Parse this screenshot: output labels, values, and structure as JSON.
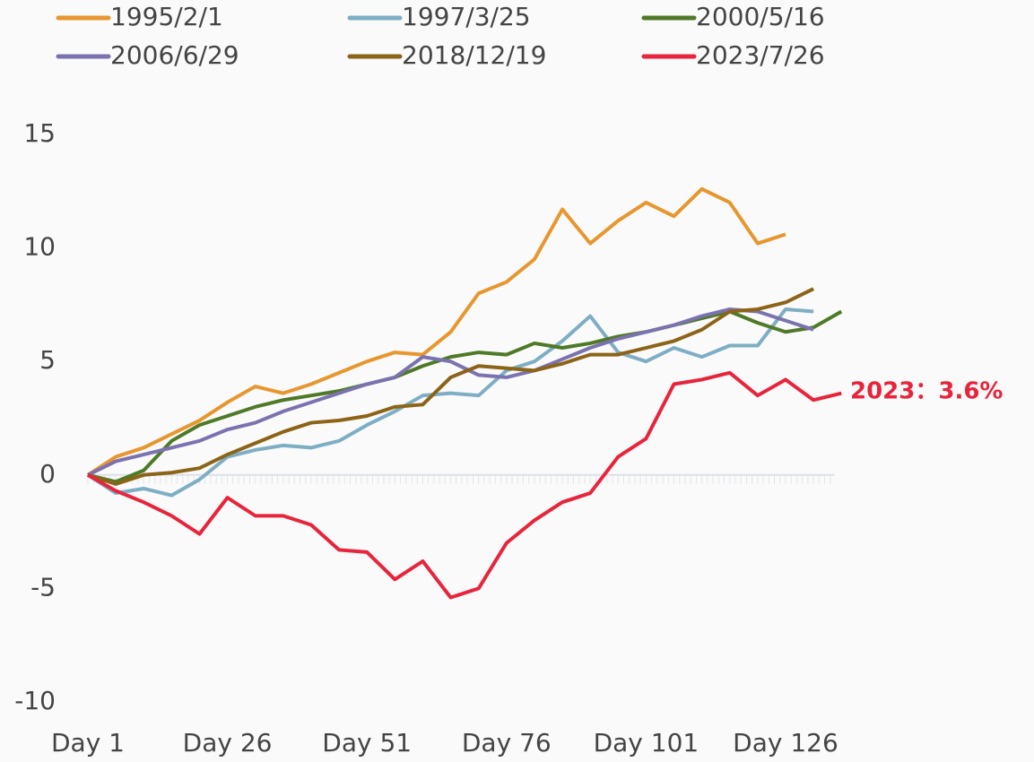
{
  "chart_data": {
    "type": "line",
    "annotation": "2023：3.6%",
    "categories": [
      "Day 1",
      null,
      null,
      null,
      null,
      "Day 26",
      null,
      null,
      null,
      null,
      "Day 51",
      null,
      null,
      null,
      null,
      "Day 76",
      null,
      null,
      null,
      null,
      "Day 101",
      null,
      null,
      null,
      null,
      "Day 126",
      null,
      null
    ],
    "series": [
      {
        "name": "1995/2/1",
        "color": "#e8962e",
        "values": [
          0,
          0.8,
          1.2,
          1.8,
          2.4,
          3.2,
          3.9,
          3.6,
          4.0,
          4.5,
          5.0,
          5.4,
          5.3,
          6.3,
          8.0,
          8.5,
          9.5,
          11.7,
          10.2,
          11.2,
          12.0,
          11.4,
          12.6,
          12.0,
          10.2,
          10.6,
          null,
          null
        ]
      },
      {
        "name": "1997/3/25",
        "color": "#7eaec4",
        "values": [
          0,
          -0.8,
          -0.6,
          -0.9,
          -0.2,
          0.8,
          1.1,
          1.3,
          1.2,
          1.5,
          2.2,
          2.8,
          3.5,
          3.6,
          3.5,
          4.6,
          5.0,
          5.9,
          7.0,
          5.4,
          5.0,
          5.6,
          5.2,
          5.7,
          5.7,
          7.3,
          7.2,
          null
        ]
      },
      {
        "name": "2000/5/16",
        "color": "#4e7a27",
        "values": [
          0,
          -0.3,
          0.2,
          1.5,
          2.2,
          2.6,
          3.0,
          3.3,
          3.5,
          3.7,
          4.0,
          4.3,
          4.8,
          5.2,
          5.4,
          5.3,
          5.8,
          5.6,
          5.8,
          6.1,
          6.3,
          6.6,
          6.9,
          7.2,
          6.7,
          6.3,
          6.5,
          7.2
        ]
      },
      {
        "name": "2006/6/29",
        "color": "#7b72b0",
        "values": [
          0,
          0.6,
          0.9,
          1.2,
          1.5,
          2.0,
          2.3,
          2.8,
          3.2,
          3.6,
          4.0,
          4.3,
          5.2,
          5.0,
          4.4,
          4.3,
          4.6,
          5.1,
          5.6,
          6.0,
          6.3,
          6.6,
          7.0,
          7.3,
          7.2,
          6.8,
          6.4,
          null
        ]
      },
      {
        "name": "2018/12/19",
        "color": "#8c6418",
        "values": [
          0,
          -0.4,
          0,
          0.1,
          0.3,
          0.9,
          1.4,
          1.9,
          2.3,
          2.4,
          2.6,
          3.0,
          3.1,
          4.3,
          4.8,
          4.7,
          4.6,
          4.9,
          5.3,
          5.3,
          5.6,
          5.9,
          6.4,
          7.2,
          7.3,
          7.6,
          8.2,
          null
        ]
      },
      {
        "name": "2023/7/26",
        "color": "#e8243c",
        "values": [
          0,
          -0.7,
          -1.2,
          -1.8,
          -2.6,
          -1.0,
          -1.8,
          -1.8,
          -2.2,
          -3.3,
          -3.4,
          -4.6,
          -3.8,
          -5.4,
          -5.0,
          -3.0,
          -2.0,
          -1.2,
          -0.8,
          0.8,
          1.6,
          4.0,
          4.2,
          4.5,
          3.5,
          4.2,
          3.3,
          3.6
        ]
      }
    ],
    "ylim": [
      -10,
      15
    ],
    "yticks": [
      15,
      10,
      5,
      0,
      -5,
      -10
    ],
    "grid": false
  }
}
